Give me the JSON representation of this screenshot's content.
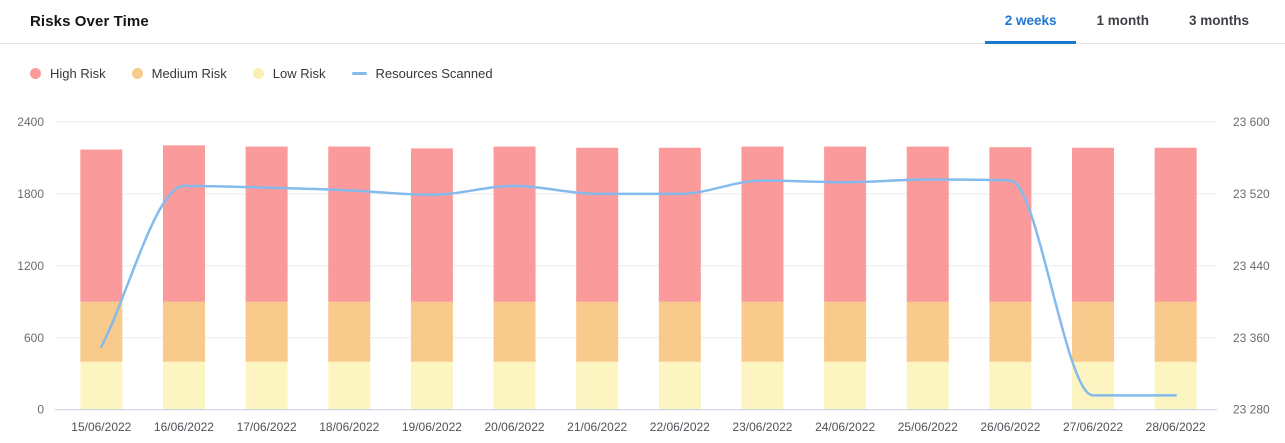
{
  "header": {
    "title": "Risks Over Time",
    "tabs": [
      {
        "label": "2 weeks",
        "active": true
      },
      {
        "label": "1 month",
        "active": false
      },
      {
        "label": "3 months",
        "active": false
      }
    ]
  },
  "legend": [
    {
      "label": "High Risk",
      "marker": "circle",
      "color": "#FA9A9A"
    },
    {
      "label": "Medium Risk",
      "marker": "circle",
      "color": "#F8CA8B"
    },
    {
      "label": "Low Risk",
      "marker": "circle",
      "color": "#F9EFB2"
    },
    {
      "label": "Resources Scanned",
      "marker": "line",
      "color": "#85BBEC"
    }
  ],
  "colors": {
    "active_tab": "#1F75D2",
    "grid": "#EAEAEB",
    "baseline": "#C4CDE6",
    "tick_text": "#686B70",
    "xlabel_text": "#505257"
  },
  "chart_data": {
    "type": "stacked-bar+line",
    "title": "Risks Over Time",
    "grid": true,
    "legend_position": "top",
    "categories": [
      "15/06/2022",
      "16/06/2022",
      "17/06/2022",
      "18/06/2022",
      "19/06/2022",
      "20/06/2022",
      "21/06/2022",
      "22/06/2022",
      "23/06/2022",
      "24/06/2022",
      "25/06/2022",
      "26/06/2022",
      "27/06/2022",
      "28/06/2022"
    ],
    "series": [
      {
        "name": "Low Risk",
        "type": "bar",
        "axis": "left",
        "color": "#FCF5C2",
        "values": [
          400,
          400,
          400,
          400,
          400,
          400,
          400,
          400,
          400,
          400,
          400,
          400,
          400,
          400
        ]
      },
      {
        "name": "Medium Risk",
        "type": "bar",
        "axis": "left",
        "color": "#F8CA8B",
        "values": [
          500,
          500,
          500,
          500,
          500,
          500,
          500,
          500,
          500,
          500,
          500,
          500,
          500,
          500
        ]
      },
      {
        "name": "High Risk",
        "type": "bar",
        "axis": "left",
        "color": "#FA9A9A",
        "values": [
          1270,
          1305,
          1295,
          1295,
          1280,
          1295,
          1285,
          1285,
          1295,
          1295,
          1295,
          1290,
          1285,
          1285
        ]
      },
      {
        "name": "Resources Scanned",
        "type": "line",
        "axis": "right",
        "color": "#85BBEC",
        "values": [
          23350,
          23529,
          23527,
          23524,
          23519,
          23529,
          23520,
          23520,
          23535,
          23533,
          23536,
          23535,
          23296,
          23296
        ]
      }
    ],
    "left_axis": {
      "range": [
        0,
        2400
      ],
      "tick_values": [
        0,
        600,
        1200,
        1800,
        2400
      ],
      "tick_labels": [
        "0",
        "600",
        "1200",
        "1800",
        "2400"
      ]
    },
    "right_axis": {
      "range": [
        23280,
        23600
      ],
      "tick_values": [
        23280,
        23360,
        23440,
        23520,
        23600
      ],
      "tick_labels": [
        "23 280",
        "23 360",
        "23 440",
        "23 520",
        "23 600"
      ]
    }
  }
}
